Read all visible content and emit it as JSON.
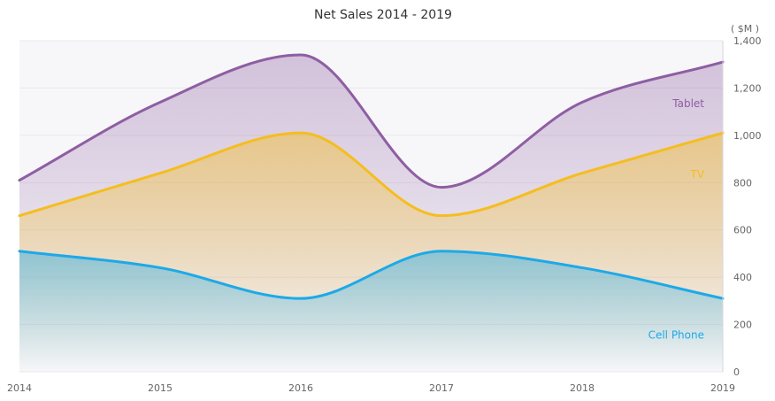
{
  "chart_data": {
    "type": "area",
    "title": "Net Sales 2014 - 2019",
    "unit_label": "( $M )",
    "x": [
      2014,
      2015,
      2016,
      2017,
      2018,
      2019
    ],
    "x_tick_labels": [
      "2014",
      "2015",
      "2016",
      "2017",
      "2018",
      "2019"
    ],
    "ylim": [
      0,
      1400
    ],
    "y_tick_values": [
      0,
      200,
      400,
      600,
      800,
      1000,
      1200,
      1400
    ],
    "y_tick_labels": [
      "0",
      "200",
      "400",
      "600",
      "800",
      "1,000",
      "1,200",
      "1,400"
    ],
    "y_axis_side": "right",
    "grid": true,
    "legend": "none",
    "stacked": false,
    "series": [
      {
        "name": "Cell Phone",
        "values": [
          510,
          440,
          310,
          510,
          440,
          310
        ],
        "color": "#1da9e8"
      },
      {
        "name": "TV",
        "values": [
          660,
          840,
          1010,
          660,
          840,
          1010
        ],
        "color": "#f5bd1f"
      },
      {
        "name": "Tablet",
        "values": [
          810,
          1140,
          1340,
          780,
          1140,
          1310
        ],
        "color": "#8e5ea2"
      }
    ]
  }
}
